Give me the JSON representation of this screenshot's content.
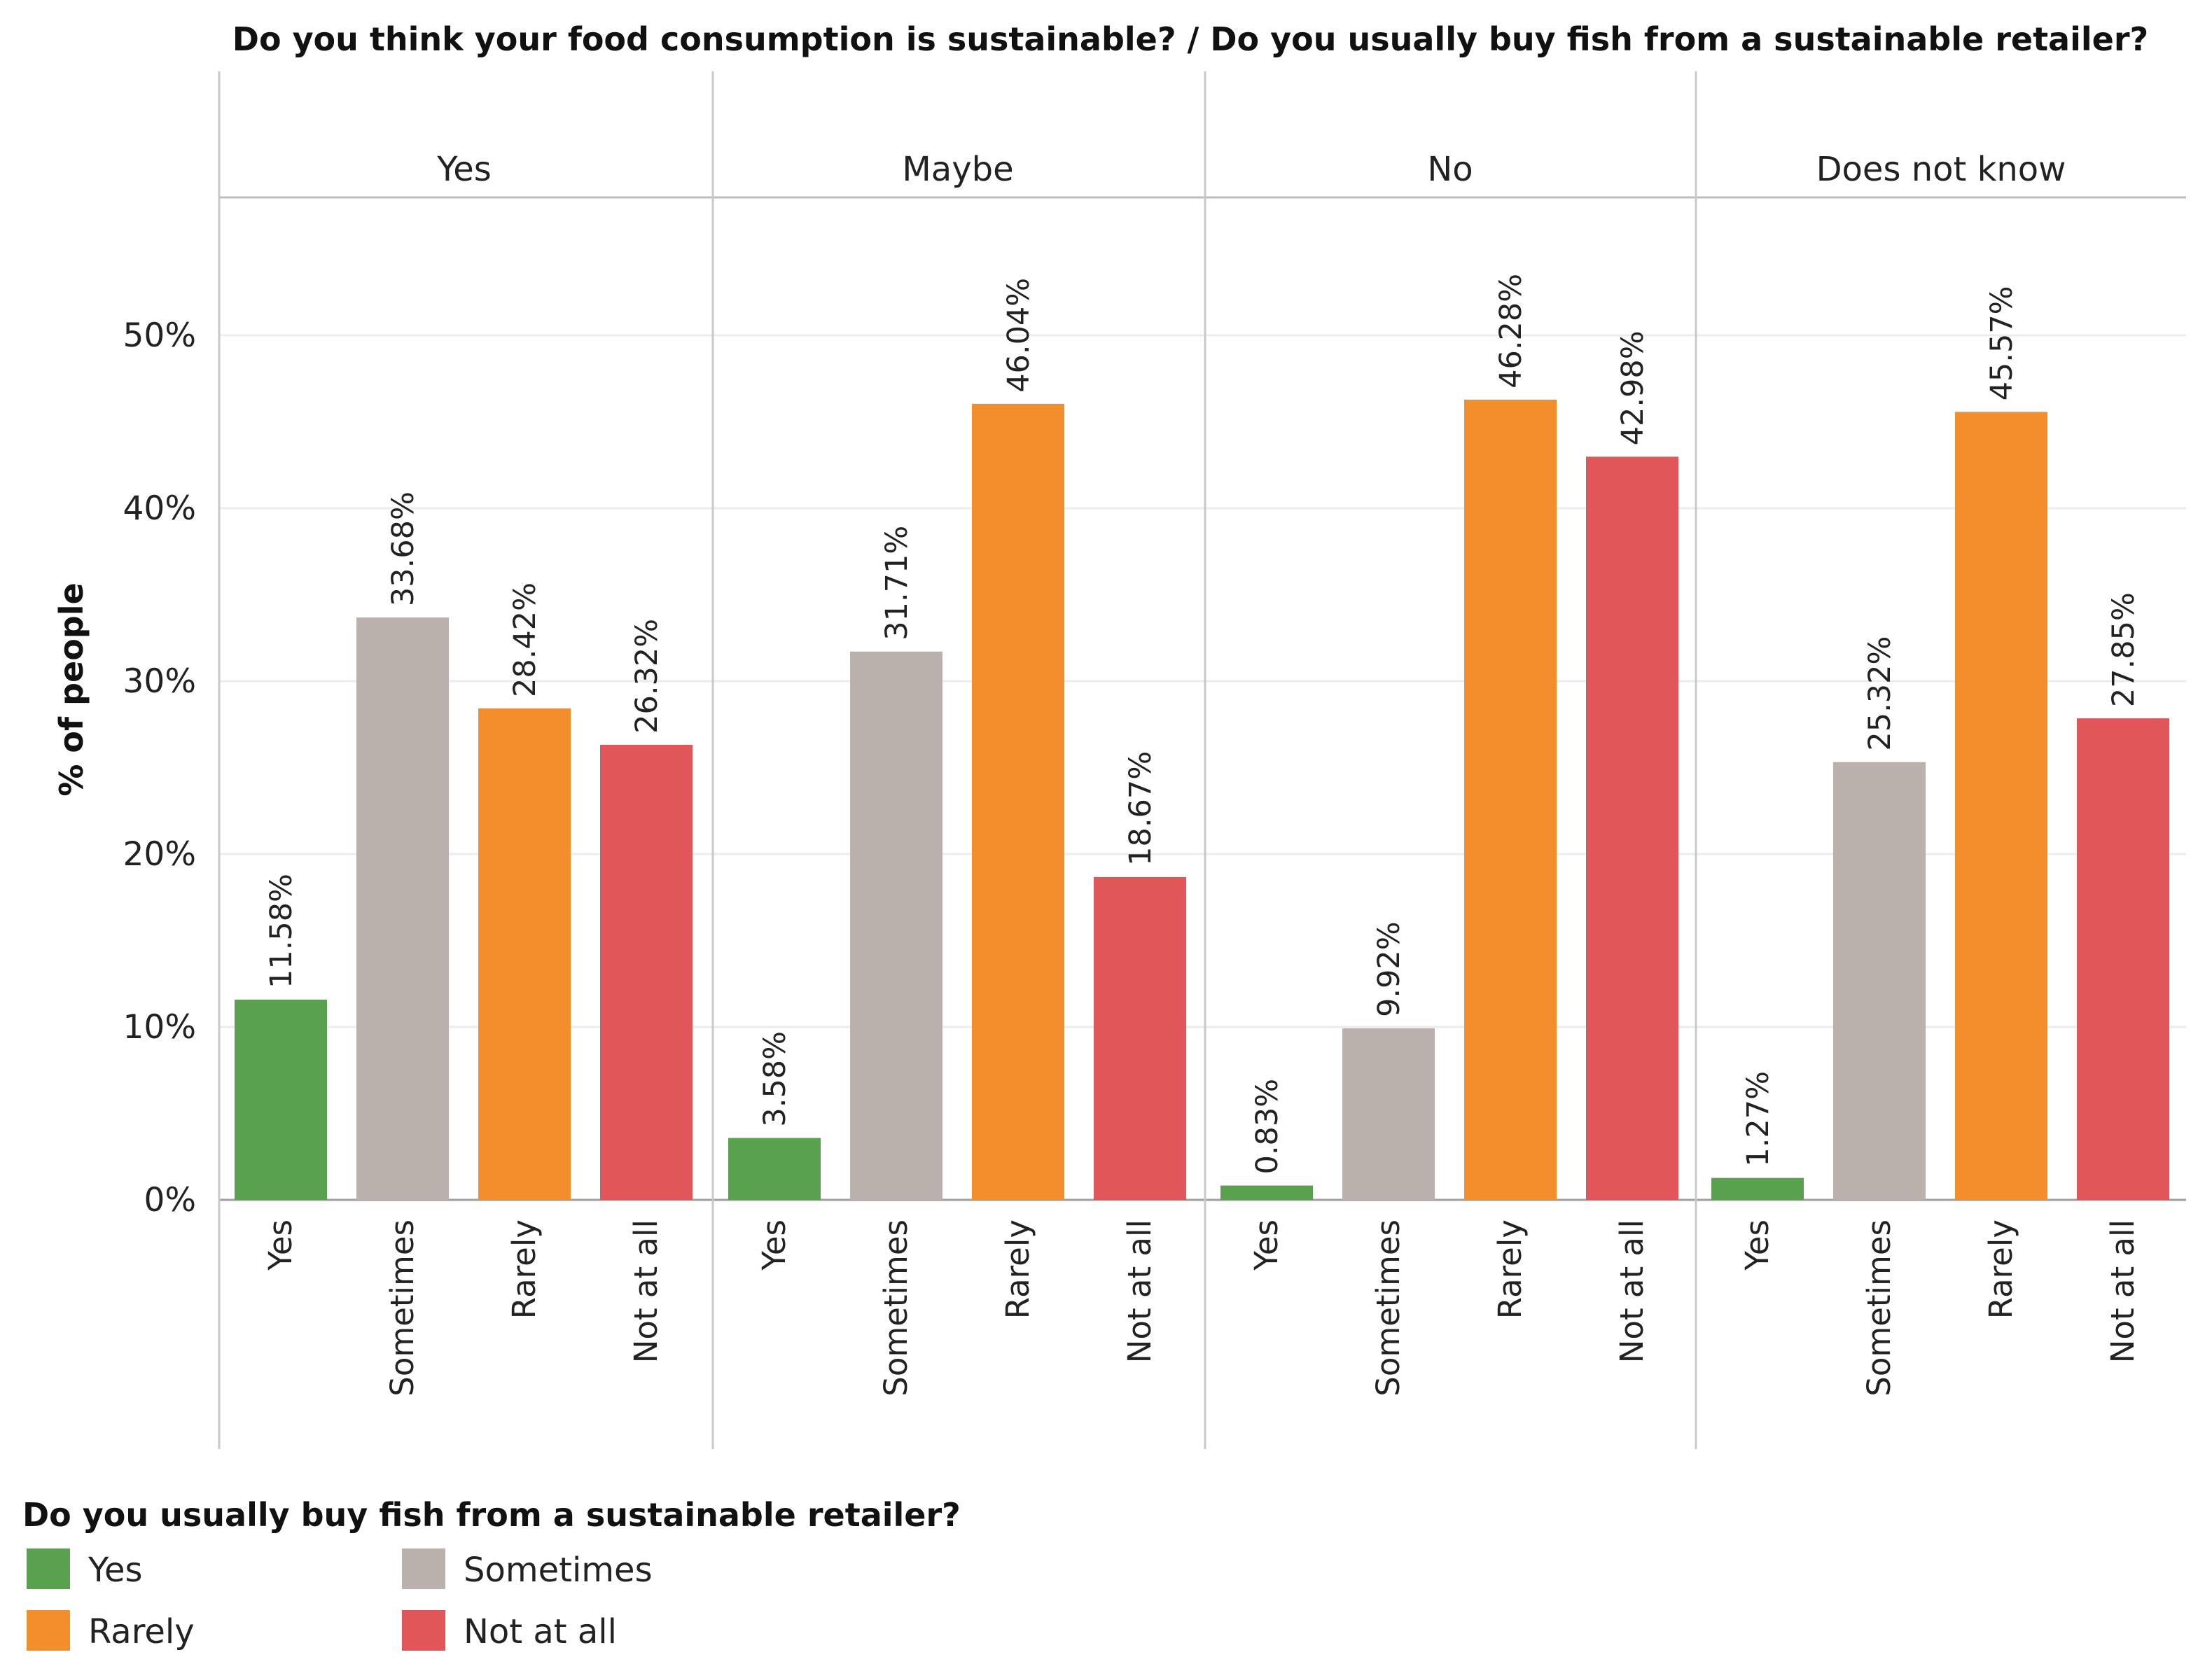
{
  "chart_data": {
    "type": "bar",
    "title": "Do you think your food consumption is sustainable?  /  Do you usually buy fish from a sustainable retailer?",
    "ylabel": "% of people",
    "xlabel": "",
    "ylim": [
      0,
      58
    ],
    "yticks": [
      0,
      10,
      20,
      30,
      40,
      50
    ],
    "ytick_suffix": "%",
    "grid": true,
    "categories": [
      "Yes",
      "Sometimes",
      "Rarely",
      "Not at all"
    ],
    "panels": [
      {
        "name": "Yes",
        "values": [
          11.58,
          33.68,
          28.42,
          26.32
        ],
        "labels": [
          "11.58%",
          "33.68%",
          "28.42%",
          "26.32%"
        ]
      },
      {
        "name": "Maybe",
        "values": [
          3.58,
          31.71,
          46.04,
          18.67
        ],
        "labels": [
          "3.58%",
          "31.71%",
          "46.04%",
          "18.67%"
        ]
      },
      {
        "name": "No",
        "values": [
          0.83,
          9.92,
          46.28,
          42.98
        ],
        "labels": [
          "0.83%",
          "9.92%",
          "46.28%",
          "42.98%"
        ]
      },
      {
        "name": "Does not know",
        "values": [
          1.27,
          25.32,
          45.57,
          27.85
        ],
        "labels": [
          "1.27%",
          "25.32%",
          "45.57%",
          "27.85%"
        ]
      }
    ],
    "colors": [
      "#59a14f",
      "#bab0ac",
      "#f28e2b",
      "#e15759"
    ],
    "legend": {
      "title": "Do you usually buy fish from a sustainable retailer?",
      "placement": "bottom-left",
      "items": [
        "Yes",
        "Sometimes",
        "Rarely",
        "Not at all"
      ]
    }
  }
}
